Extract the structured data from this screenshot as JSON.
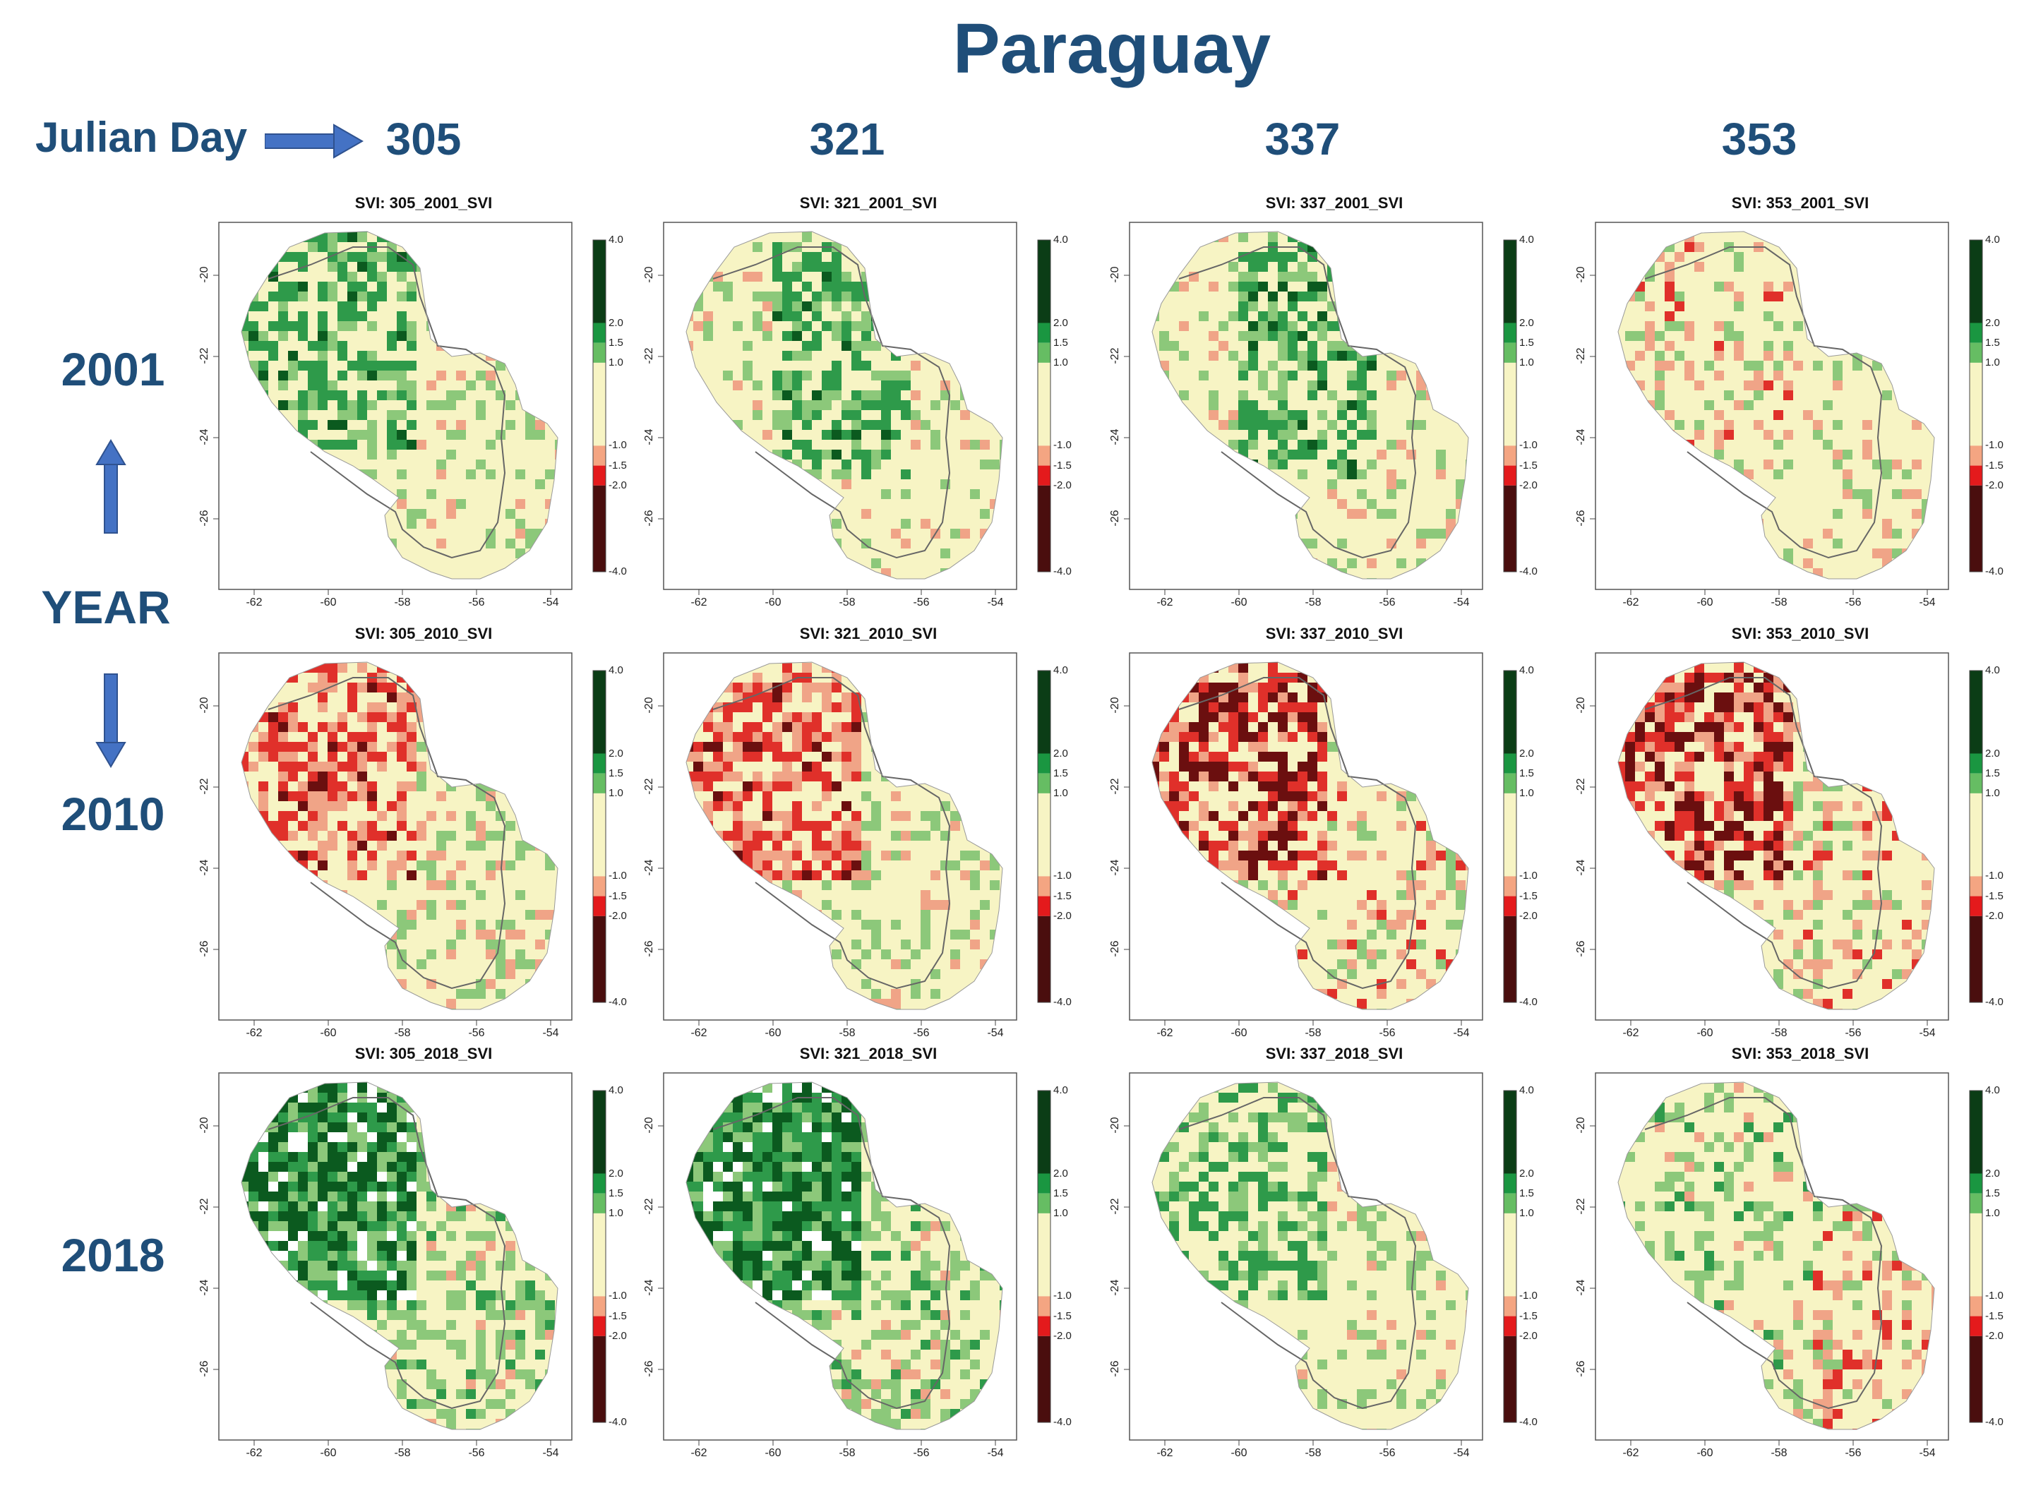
{
  "title": "Paraguay",
  "julian_day_label": "Julian Day",
  "year_axis_label": "YEAR",
  "days": [
    "305",
    "321",
    "337",
    "353"
  ],
  "years": [
    "2001",
    "2010",
    "2018"
  ],
  "panels": [
    {
      "title": "SVI:  305_2001_SVI",
      "day": "305",
      "year": "2001",
      "pattern": "green-west"
    },
    {
      "title": "SVI:  321_2001_SVI",
      "day": "321",
      "year": "2001",
      "pattern": "green-center"
    },
    {
      "title": "SVI:  337_2001_SVI",
      "day": "337",
      "year": "2001",
      "pattern": "green-center"
    },
    {
      "title": "SVI:  353_2001_SVI",
      "day": "353",
      "year": "2001",
      "pattern": "mixed-north"
    },
    {
      "title": "SVI:  305_2010_SVI",
      "day": "305",
      "year": "2010",
      "pattern": "red-west"
    },
    {
      "title": "SVI:  321_2010_SVI",
      "day": "321",
      "year": "2010",
      "pattern": "red-west"
    },
    {
      "title": "SVI:  337_2010_SVI",
      "day": "337",
      "year": "2010",
      "pattern": "darkred-west"
    },
    {
      "title": "SVI:  353_2010_SVI",
      "day": "353",
      "year": "2010",
      "pattern": "darkred-west"
    },
    {
      "title": "SVI:  305_2018_SVI",
      "day": "305",
      "year": "2018",
      "pattern": "darkgreen-west"
    },
    {
      "title": "SVI:  321_2018_SVI",
      "day": "321",
      "year": "2018",
      "pattern": "darkgreen-west"
    },
    {
      "title": "SVI:  337_2018_SVI",
      "day": "337",
      "year": "2018",
      "pattern": "light-green"
    },
    {
      "title": "SVI:  353_2018_SVI",
      "day": "353",
      "year": "2018",
      "pattern": "mixed-east"
    }
  ],
  "x_ticks": [
    "-62",
    "-60",
    "-58",
    "-56",
    "-54"
  ],
  "y_ticks": [
    "-20",
    "-22",
    "-24",
    "-26"
  ],
  "colorbar": {
    "labels": [
      "4.0",
      "2.0",
      "1.5",
      "1.0",
      "-1.0",
      "-1.5",
      "-2.0",
      "-4.0"
    ],
    "colors": [
      "#0b3d16",
      "#1a9641",
      "#66bd63",
      "#f7f4c4",
      "#f4a582",
      "#e41a1c",
      "#4a0e0e"
    ]
  },
  "colors": {
    "title_blue": "#1f4e79",
    "arrow_blue": "#4472c4"
  }
}
